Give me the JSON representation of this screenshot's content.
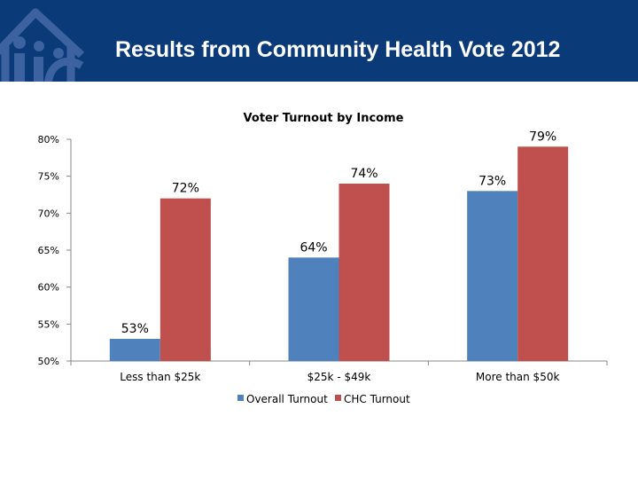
{
  "header": {
    "title": "Results from Community Health Vote 2012",
    "background": "#0b3a78",
    "logo_icon": "house-outline-logo"
  },
  "chart_data": {
    "type": "bar",
    "title": "Voter Turnout by Income",
    "xlabel": "",
    "ylabel": "",
    "categories": [
      "Less than $25k",
      "$25k - $49k",
      "More than $50k"
    ],
    "series": [
      {
        "name": "Overall Turnout",
        "values": [
          53,
          64,
          73
        ],
        "labels": [
          "53%",
          "64%",
          "73%"
        ],
        "color": "#4f81bd"
      },
      {
        "name": "CHC  Turnout",
        "values": [
          72,
          74,
          79
        ],
        "labels": [
          "72%",
          "74%",
          "79%"
        ],
        "color": "#c0504d"
      }
    ],
    "ylim": [
      50,
      80
    ],
    "yticks": [
      50,
      55,
      60,
      65,
      70,
      75,
      80
    ],
    "ytick_labels": [
      "50%",
      "55%",
      "60%",
      "65%",
      "70%",
      "75%",
      "80%"
    ],
    "grid": false,
    "legend_position": "bottom"
  }
}
